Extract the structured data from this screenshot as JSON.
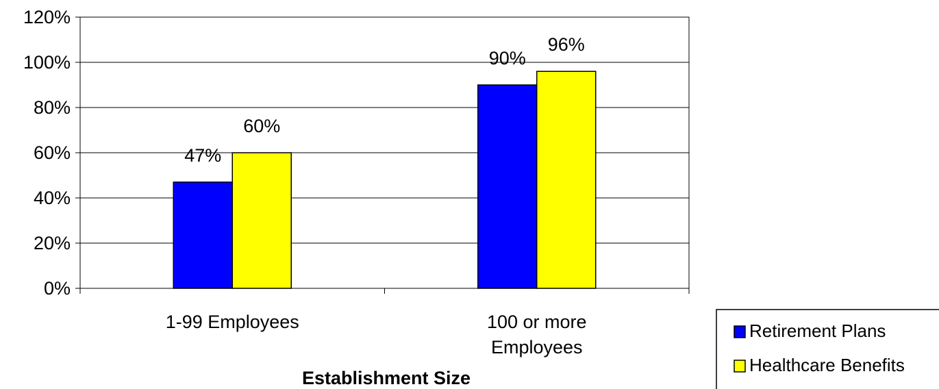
{
  "chart_data": {
    "type": "bar",
    "categories": [
      [
        "1-99 Employees"
      ],
      [
        "100 or more",
        "Employees"
      ]
    ],
    "series": [
      {
        "name": "Retirement Plans",
        "values": [
          47,
          90
        ],
        "labels": [
          "47%",
          "90%"
        ],
        "color": "#0000FF"
      },
      {
        "name": "Healthcare Benefits",
        "values": [
          60,
          96
        ],
        "labels": [
          "60%",
          "96%"
        ],
        "color": "#FFFF00"
      }
    ],
    "title": "",
    "xlabel": "Establishment Size",
    "ylabel": "",
    "ylim": [
      0,
      120
    ],
    "yticks": [
      0,
      20,
      40,
      60,
      80,
      100,
      120
    ],
    "ytick_labels": [
      "0%",
      "20%",
      "40%",
      "60%",
      "80%",
      "100%",
      "120%"
    ],
    "grid": true,
    "legend_position": "bottom-right"
  }
}
